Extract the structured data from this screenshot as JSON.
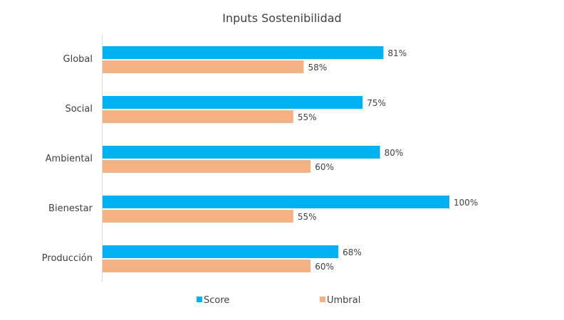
{
  "chart_data": {
    "type": "bar",
    "orientation": "horizontal",
    "title": "Inputs Sostenibilidad",
    "categories": [
      "Global",
      "Social",
      "Ambiental",
      "Bienestar",
      "Producción"
    ],
    "series": [
      {
        "name": "Score",
        "values": [
          81,
          75,
          80,
          100,
          68
        ],
        "labels": [
          "81%",
          "75%",
          "80%",
          "100%",
          "68%"
        ],
        "color": "#00b0f0"
      },
      {
        "name": "Umbral",
        "values": [
          58,
          55,
          60,
          55,
          60
        ],
        "labels": [
          "58%",
          "55%",
          "60%",
          "55%",
          "60%"
        ],
        "color": "#f4b183"
      }
    ],
    "xlim": [
      0,
      100
    ],
    "value_unit": "%",
    "grid": false,
    "legend_position": "bottom"
  }
}
